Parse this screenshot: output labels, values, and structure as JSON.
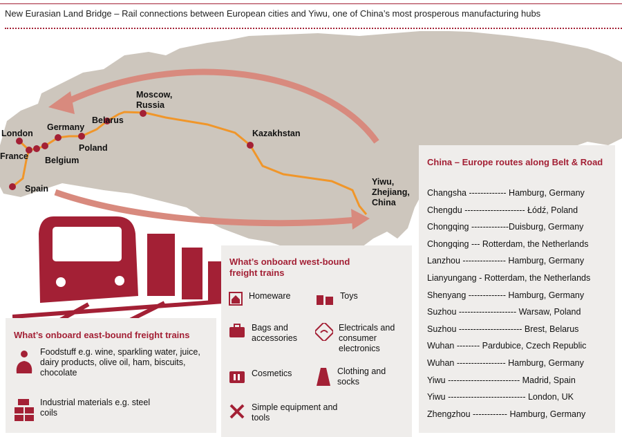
{
  "title": "New Eurasian Land Bridge – Rail connections between European cities and Yiwu, one of China’s most prosperous manufacturing hubs",
  "colors": {
    "accent": "#a32035",
    "route": "#f0962a",
    "arrow": "#d88a7e",
    "land": "#cdc6bd",
    "panel": "#efedeb"
  },
  "map_labels": {
    "london": "London",
    "france": "France",
    "spain": "Spain",
    "germany": "Germany",
    "belgium": "Belgium",
    "poland": "Poland",
    "belarus": "Belarus",
    "moscow": "Moscow,\nRussia",
    "kazakhstan": "Kazakhstan",
    "yiwu": "Yiwu,\nZhejiang,\nChina"
  },
  "routes_box": {
    "title": "China – Europe routes along Belt & Road",
    "routes": [
      "Changsha ------------- Hamburg, Germany",
      "Chengdu --------------------- Łódź, Poland",
      "Chongqing -------------Duisburg, Germany",
      "Chongqing --- Rotterdam, the Netherlands",
      "Lanzhou --------------- Hamburg, Germany",
      "Lianyungang - Rotterdam, the Netherlands",
      "Shenyang ------------- Hamburg, Germany",
      "Suzhou -------------------- Warsaw, Poland",
      "Suzhou ---------------------- Brest, Belarus",
      "Wuhan -------- Pardubice, Czech Republic",
      "Wuhan ----------------- Hamburg, Germany",
      "Yiwu ------------------------- Madrid, Spain",
      "Yiwu --------------------------- London, UK",
      "Zhengzhou ------------ Hamburg, Germany"
    ]
  },
  "west_box": {
    "title": "What’s onboard west-bound freight trains",
    "items": [
      {
        "label": "Homeware",
        "icon": "house-icon"
      },
      {
        "label": "Toys",
        "icon": "toys-icon"
      },
      {
        "label": "Bags and accessories",
        "icon": "bag-icon"
      },
      {
        "label": "Electricals and consumer electronics",
        "icon": "electricals-icon"
      },
      {
        "label": "Cosmetics",
        "icon": "cosmetics-icon"
      },
      {
        "label": "Clothing and socks",
        "icon": "clothing-icon"
      },
      {
        "label": "Simple equipment and tools",
        "icon": "tools-icon"
      }
    ]
  },
  "east_box": {
    "title": "What’s onboard east-bound freight trains",
    "items": [
      {
        "label": "Foodstuff e.g. wine, sparkling water, juice, dairy products, olive oil, ham, biscuits, chocolate",
        "icon": "food-icon"
      },
      {
        "label": "Industrial materials e.g. steel coils",
        "icon": "steel-icon"
      }
    ]
  }
}
